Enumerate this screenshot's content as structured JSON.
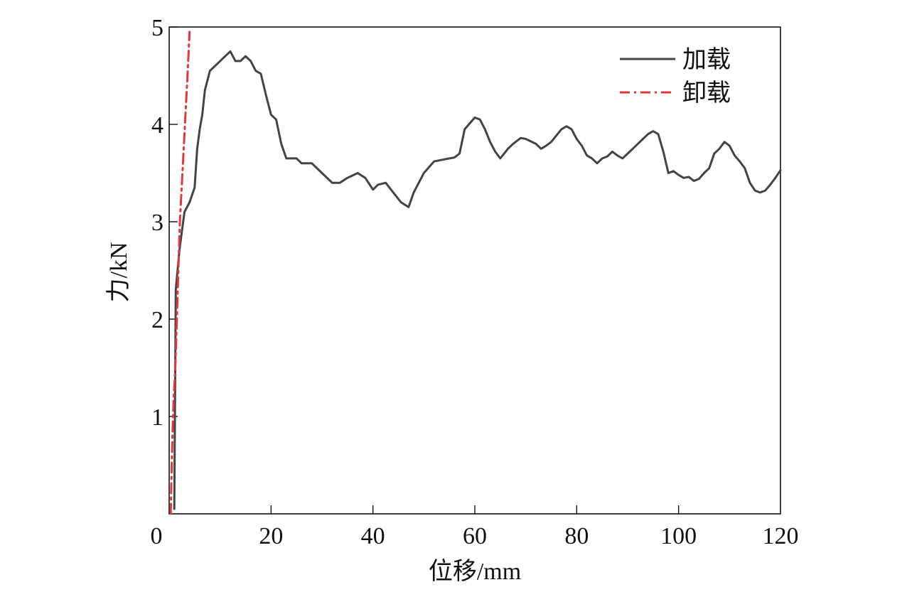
{
  "chart_data": {
    "type": "line",
    "xlabel": "位移/mm",
    "ylabel": "力/kN",
    "xlim": [
      0,
      120
    ],
    "ylim": [
      0,
      5
    ],
    "x_ticks": [
      "0",
      "20",
      "40",
      "60",
      "80",
      "100",
      "120"
    ],
    "y_ticks": [
      "1",
      "2",
      "3",
      "4",
      "5"
    ],
    "x_tick_values": [
      0,
      20,
      40,
      60,
      80,
      100,
      120
    ],
    "y_tick_values": [
      1,
      2,
      3,
      4,
      5
    ],
    "grid": false,
    "legend_position": "top-right",
    "series": [
      {
        "name": "加载",
        "color": "#444444",
        "dash": "solid",
        "x": [
          1.0,
          1.3,
          2.0,
          2.5,
          3.0,
          4.0,
          5.0,
          5.5,
          6.0,
          6.5,
          7.0,
          8.0,
          9.0,
          10.0,
          11.0,
          12.0,
          13.0,
          14.0,
          15.0,
          16.0,
          17.0,
          18.0,
          19.0,
          20.0,
          21.0,
          22.0,
          23.0,
          24.0,
          25.0,
          26.0,
          28.0,
          30.0,
          32.0,
          33.5,
          35.0,
          37.0,
          38.5,
          40.0,
          41.0,
          42.5,
          44.0,
          45.5,
          47.0,
          48.0,
          50.0,
          52.0,
          53.0,
          55.0,
          56.0,
          57.0,
          58.0,
          60.0,
          61.0,
          62.0,
          63.0,
          64.0,
          65.0,
          66.5,
          67.5,
          69.0,
          70.0,
          72.0,
          73.0,
          74.0,
          75.0,
          77.0,
          78.0,
          79.0,
          80.0,
          81.0,
          82.0,
          83.0,
          84.0,
          85.0,
          86.0,
          87.0,
          88.0,
          89.0,
          90.0,
          91.0,
          92.0,
          93.0,
          94.0,
          95.0,
          96.0,
          97.0,
          98.0,
          99.0,
          100.0,
          101.0,
          102.0,
          103.0,
          104.0,
          105.0,
          106.0,
          107.0,
          108.0,
          109.0,
          110.0,
          111.0,
          112.0,
          113.0,
          114.0,
          115.0,
          116.0,
          117.0,
          118.0,
          119.0,
          120.0
        ],
        "y": [
          0.05,
          2.3,
          2.7,
          2.9,
          3.1,
          3.2,
          3.35,
          3.75,
          3.95,
          4.1,
          4.35,
          4.55,
          4.6,
          4.65,
          4.7,
          4.75,
          4.65,
          4.65,
          4.7,
          4.65,
          4.55,
          4.52,
          4.3,
          4.1,
          4.05,
          3.8,
          3.65,
          3.65,
          3.65,
          3.6,
          3.6,
          3.5,
          3.4,
          3.4,
          3.45,
          3.5,
          3.45,
          3.33,
          3.38,
          3.4,
          3.3,
          3.2,
          3.15,
          3.3,
          3.5,
          3.62,
          3.63,
          3.65,
          3.66,
          3.7,
          3.95,
          4.07,
          4.05,
          3.95,
          3.82,
          3.72,
          3.65,
          3.75,
          3.8,
          3.86,
          3.85,
          3.8,
          3.75,
          3.78,
          3.82,
          3.95,
          3.98,
          3.95,
          3.85,
          3.78,
          3.68,
          3.65,
          3.6,
          3.65,
          3.67,
          3.72,
          3.68,
          3.65,
          3.7,
          3.75,
          3.8,
          3.85,
          3.9,
          3.93,
          3.9,
          3.72,
          3.5,
          3.52,
          3.48,
          3.45,
          3.46,
          3.42,
          3.44,
          3.5,
          3.55,
          3.7,
          3.75,
          3.82,
          3.78,
          3.68,
          3.62,
          3.55,
          3.4,
          3.32,
          3.3,
          3.32,
          3.38,
          3.45,
          3.53
        ]
      },
      {
        "name": "卸载",
        "color": "#e0393b",
        "dash": "dashdot",
        "x": [
          0.3,
          0.5,
          0.7,
          0.9,
          1.2,
          1.5,
          1.8,
          2.1,
          2.4,
          2.8,
          3.2,
          3.6,
          4.0
        ],
        "y": [
          0.0,
          0.5,
          0.9,
          1.2,
          1.5,
          2.0,
          2.5,
          3.0,
          3.3,
          3.7,
          4.1,
          4.5,
          4.95
        ]
      }
    ]
  }
}
